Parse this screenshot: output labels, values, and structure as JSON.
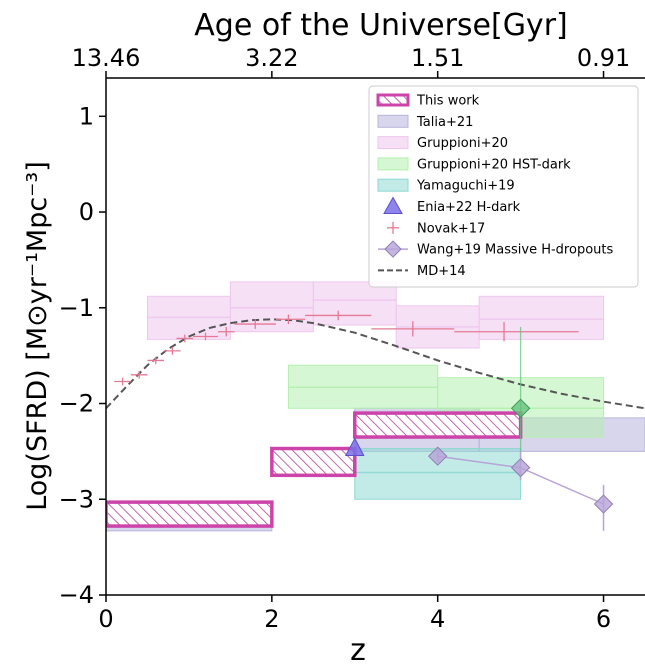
{
  "chart_data": {
    "type": "scatter",
    "title": "",
    "xlabel": "z",
    "ylabel": "Log(SFRD) [M⊙yr⁻¹Mpc⁻³]",
    "top_axis_label": "Age of the Universe[Gyr]",
    "top_ticks": [
      {
        "z": 0,
        "label": "13.46"
      },
      {
        "z": 2,
        "label": "3.22"
      },
      {
        "z": 4,
        "label": "1.51"
      },
      {
        "z": 6,
        "label": "0.91"
      }
    ],
    "xlim": [
      0,
      6.5
    ],
    "ylim": [
      -4,
      1.4
    ],
    "xticks": [
      0,
      2,
      4,
      6
    ],
    "xtick_labels": [
      "0",
      "2",
      "4",
      "6"
    ],
    "yticks": [
      1,
      0,
      -1,
      -2,
      -3,
      -4
    ],
    "ytick_labels": [
      "1",
      "0",
      "−1",
      "−2",
      "−3",
      "−4"
    ],
    "grid": false,
    "legend_position": "top-right",
    "legend": [
      {
        "label": "This work",
        "kind": "hatch",
        "color": "#cc44aa"
      },
      {
        "label": "Talia+21",
        "kind": "patch",
        "color": "#b8b4dc"
      },
      {
        "label": "Gruppioni+20",
        "kind": "patch",
        "color": "#efc6ee"
      },
      {
        "label": "Gruppioni+20 HST-dark",
        "kind": "patch",
        "color": "#b3f0ae"
      },
      {
        "label": "Yamaguchi+19",
        "kind": "patch",
        "color": "#8fd8d2"
      },
      {
        "label": "Enia+22 H-dark",
        "kind": "triangle",
        "color": "#7b6fe8"
      },
      {
        "label": "Novak+17",
        "kind": "cross",
        "color": "#e47a93"
      },
      {
        "label": "Wang+19 Massive H-dropouts",
        "kind": "diamond",
        "color": "#b7a3d8"
      },
      {
        "label": "MD+14",
        "kind": "dashed",
        "color": "#555555"
      }
    ],
    "series": [
      {
        "name": "This work",
        "type": "boxes",
        "color": "#cc44aa",
        "boxes": [
          {
            "x0": 0.0,
            "x1": 2.0,
            "y0": -3.28,
            "y1": -3.03
          },
          {
            "x0": 2.0,
            "x1": 3.0,
            "y0": -2.75,
            "y1": -2.47
          },
          {
            "x0": 3.0,
            "x1": 5.0,
            "y0": -2.35,
            "y1": -2.1
          }
        ]
      },
      {
        "name": "Talia+21",
        "type": "boxes",
        "color": "#b8b4dc",
        "boxes": [
          {
            "x0": 0.0,
            "x1": 2.0,
            "y0": -3.33,
            "y1": -3.05
          },
          {
            "x0": 3.0,
            "x1": 4.5,
            "y0": -2.5,
            "y1": -2.05
          },
          {
            "x0": 4.5,
            "x1": 6.5,
            "y0": -2.5,
            "y1": -2.15
          }
        ]
      },
      {
        "name": "Gruppioni+20",
        "type": "boxes_with_mid",
        "color": "#efc6ee",
        "boxes": [
          {
            "x0": 0.5,
            "x1": 1.5,
            "y0": -1.33,
            "y1": -0.88,
            "mid": -1.1
          },
          {
            "x0": 1.5,
            "x1": 2.5,
            "y0": -1.25,
            "y1": -0.73,
            "mid": -1.0
          },
          {
            "x0": 2.5,
            "x1": 3.5,
            "y0": -1.18,
            "y1": -0.73,
            "mid": -0.92
          },
          {
            "x0": 3.5,
            "x1": 4.5,
            "y0": -1.42,
            "y1": -0.98,
            "mid": -1.2
          },
          {
            "x0": 4.5,
            "x1": 6.0,
            "y0": -1.33,
            "y1": -0.88,
            "mid": -1.12
          }
        ]
      },
      {
        "name": "Gruppioni+20 HST-dark",
        "type": "boxes_with_mid",
        "color": "#b3f0ae",
        "boxes": [
          {
            "x0": 2.2,
            "x1": 4.0,
            "y0": -2.05,
            "y1": -1.6,
            "mid": -1.83
          },
          {
            "x0": 4.0,
            "x1": 6.0,
            "y0": -2.35,
            "y1": -1.73,
            "mid": -2.05
          }
        ]
      },
      {
        "name": "Yamaguchi+19",
        "type": "boxes_with_mid",
        "color": "#8fd8d2",
        "boxes": [
          {
            "x0": 3.0,
            "x1": 5.0,
            "y0": -3.0,
            "y1": -2.47,
            "mid": -2.72
          }
        ]
      },
      {
        "name": "Enia+22 H-dark",
        "type": "triangle",
        "color": "#7b6fe8",
        "points": [
          {
            "x": 3.0,
            "y": -2.47
          }
        ]
      },
      {
        "name": "Novak+17",
        "type": "crosses",
        "color": "#e47a93",
        "points": [
          {
            "x": 0.2,
            "x0": 0.1,
            "x1": 0.3,
            "y": -1.77,
            "y0": -1.81,
            "y1": -1.73
          },
          {
            "x": 0.4,
            "x0": 0.3,
            "x1": 0.5,
            "y": -1.7,
            "y0": -1.74,
            "y1": -1.66
          },
          {
            "x": 0.6,
            "x0": 0.5,
            "x1": 0.7,
            "y": -1.55,
            "y0": -1.59,
            "y1": -1.51
          },
          {
            "x": 0.8,
            "x0": 0.7,
            "x1": 0.9,
            "y": -1.45,
            "y0": -1.49,
            "y1": -1.41
          },
          {
            "x": 0.95,
            "x0": 0.85,
            "x1": 1.05,
            "y": -1.32,
            "y0": -1.36,
            "y1": -1.28
          },
          {
            "x": 1.2,
            "x0": 1.05,
            "x1": 1.35,
            "y": -1.3,
            "y0": -1.34,
            "y1": -1.26
          },
          {
            "x": 1.45,
            "x0": 1.35,
            "x1": 1.55,
            "y": -1.25,
            "y0": -1.3,
            "y1": -1.2
          },
          {
            "x": 1.8,
            "x0": 1.55,
            "x1": 2.05,
            "y": -1.17,
            "y0": -1.22,
            "y1": -1.12
          },
          {
            "x": 2.2,
            "x0": 2.05,
            "x1": 2.4,
            "y": -1.12,
            "y0": -1.17,
            "y1": -1.07
          },
          {
            "x": 2.8,
            "x0": 2.4,
            "x1": 3.2,
            "y": -1.08,
            "y0": -1.13,
            "y1": -1.03
          },
          {
            "x": 3.7,
            "x0": 3.2,
            "x1": 4.2,
            "y": -1.22,
            "y0": -1.3,
            "y1": -1.14
          },
          {
            "x": 4.8,
            "x0": 4.2,
            "x1": 5.7,
            "y": -1.25,
            "y0": -1.35,
            "y1": -1.15
          }
        ]
      },
      {
        "name": "Wang+19 Massive H-dropouts",
        "type": "diamonds",
        "color": "#b7a3d8",
        "points": [
          {
            "x": 4.0,
            "y": -2.55,
            "yerr0": -2.6,
            "yerr1": -2.48
          },
          {
            "x": 5.0,
            "y": -2.67,
            "yerr0": -2.8,
            "yerr1": -2.5
          },
          {
            "x": 6.0,
            "y": -3.05,
            "yerr0": -3.33,
            "yerr1": -2.85
          }
        ]
      },
      {
        "name": "Wang+19 green point",
        "type": "diamonds_plain",
        "color": "#5fbf7a",
        "points": [
          {
            "x": 5.0,
            "y": -2.05,
            "yerr0": -2.7,
            "yerr1": -1.2
          }
        ]
      },
      {
        "name": "MD+14",
        "type": "line_dashed",
        "color": "#555555",
        "x": [
          0,
          0.25,
          0.5,
          0.75,
          1.0,
          1.25,
          1.5,
          1.75,
          2.0,
          2.25,
          2.5,
          3.0,
          3.5,
          4.0,
          4.5,
          5.0,
          5.5,
          6.0,
          6.5
        ],
        "y": [
          -2.05,
          -1.82,
          -1.6,
          -1.43,
          -1.3,
          -1.21,
          -1.16,
          -1.13,
          -1.12,
          -1.13,
          -1.16,
          -1.26,
          -1.4,
          -1.55,
          -1.68,
          -1.8,
          -1.9,
          -1.98,
          -2.05
        ]
      }
    ]
  }
}
